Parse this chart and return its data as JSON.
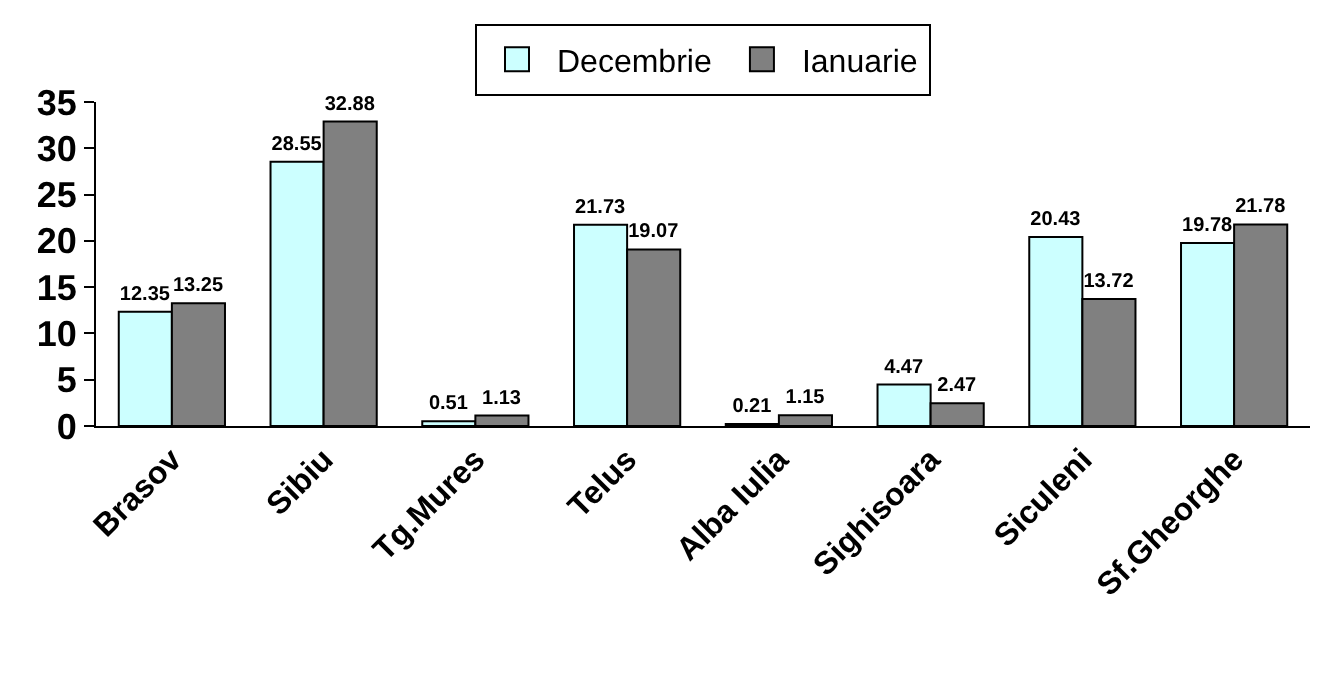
{
  "chart_data": {
    "type": "bar",
    "categories": [
      "Brasov",
      "Sibiu",
      "Tg.Mures",
      "Telus",
      "Alba Iulia",
      "Sighisoara",
      "Siculeni",
      "Sf.Gheorghe"
    ],
    "series": [
      {
        "name": "Decembrie",
        "color": "#ccffff",
        "values": [
          12.35,
          28.55,
          0.51,
          21.73,
          0.21,
          4.47,
          20.43,
          19.78
        ]
      },
      {
        "name": "Ianuarie",
        "color": "#808080",
        "values": [
          13.25,
          32.88,
          1.13,
          19.07,
          1.15,
          2.47,
          13.72,
          21.78
        ]
      }
    ],
    "ylim": [
      0,
      35
    ],
    "yticks": [
      0,
      5,
      10,
      15,
      20,
      25,
      30,
      35
    ],
    "data_labels": true,
    "grid": false,
    "legend": "top"
  }
}
